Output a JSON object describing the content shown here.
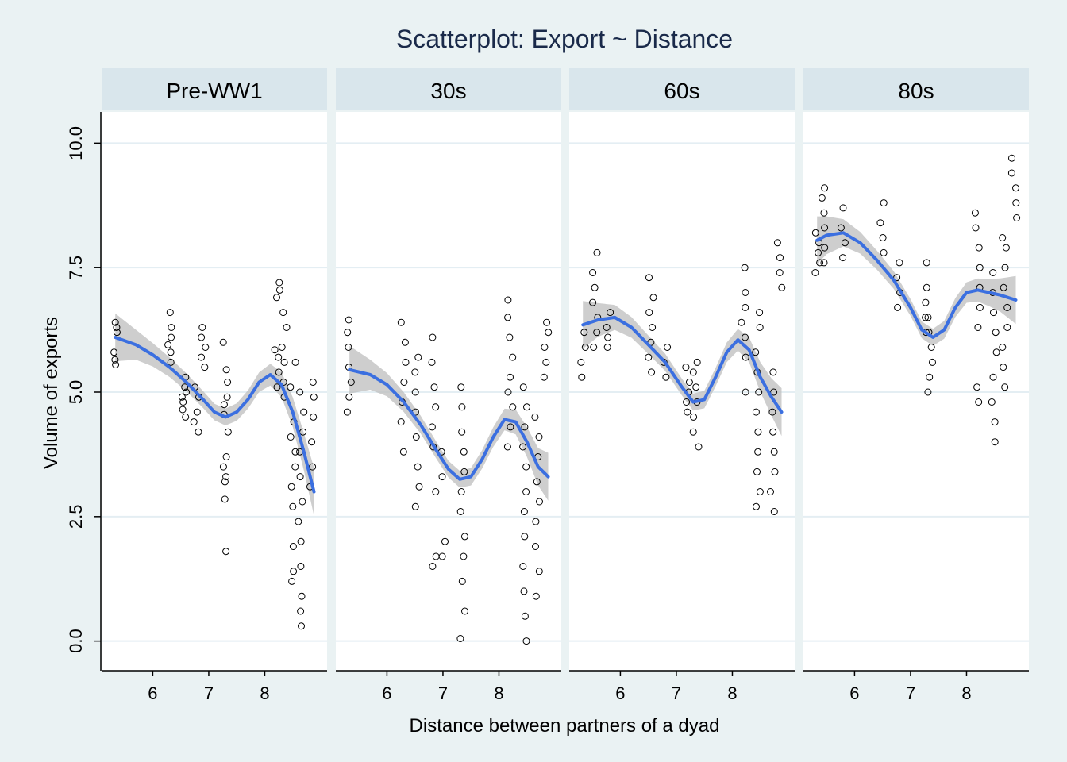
{
  "chart_data": {
    "type": "scatter",
    "title": "Scatterplot: Export ~ Distance",
    "xlabel": "Distance between partners of a dyad",
    "ylabel": "Volume of exports",
    "xlim": [
      5.2,
      9.0
    ],
    "ylim": [
      -0.5,
      10.5
    ],
    "xticks": [
      6,
      7,
      8
    ],
    "xtick_labels": [
      "6",
      "7",
      "8"
    ],
    "yticks": [
      0,
      2.5,
      5,
      7.5,
      10
    ],
    "ytick_labels": [
      "0.0",
      "2.5",
      "5.0",
      "7.5",
      "10.0"
    ],
    "grid": true,
    "legend": "none",
    "colors": {
      "background": "#eaf2f3",
      "panel": "#ffffff",
      "strip": "#d9e6ec",
      "grid": "#e4eef3",
      "smooth_line": "#3b6fe0",
      "confidence_band": "#bdbdbd",
      "points": "#000000"
    },
    "panels": [
      {
        "name": "Pre-WW1",
        "clusters": [
          {
            "x": 5.33,
            "y": [
              5.55,
              5.65,
              5.8,
              6.2,
              6.3,
              6.4
            ]
          },
          {
            "x": 6.32,
            "y": [
              5.6,
              5.8,
              5.95,
              6.1,
              6.3,
              6.6
            ]
          },
          {
            "x": 6.55,
            "y": [
              4.5,
              4.65,
              4.8,
              4.9,
              5.0,
              5.1,
              5.3
            ]
          },
          {
            "x": 6.78,
            "y": [
              4.2,
              4.4,
              4.6,
              4.9,
              5.1
            ]
          },
          {
            "x": 6.9,
            "y": [
              5.5,
              5.7,
              5.9,
              6.1,
              6.3
            ]
          },
          {
            "x": 7.3,
            "y": [
              1.8,
              2.85,
              3.2,
              3.3,
              3.5,
              3.7,
              4.2,
              4.55,
              4.75,
              4.9,
              5.2,
              5.45,
              6.0
            ]
          },
          {
            "x": 8.22,
            "y": [
              5.1,
              5.4,
              5.7,
              5.85,
              6.9,
              7.05,
              7.2
            ]
          },
          {
            "x": 8.35,
            "y": [
              4.9,
              5.2,
              5.6,
              5.9,
              6.3,
              6.6
            ]
          },
          {
            "x": 8.5,
            "y": [
              1.2,
              1.4,
              1.9,
              2.7,
              3.1,
              3.5,
              3.8,
              4.1,
              4.4,
              5.1,
              5.6
            ]
          },
          {
            "x": 8.65,
            "y": [
              0.3,
              0.6,
              0.9,
              1.5,
              2.0,
              2.4,
              2.8,
              3.3,
              3.8,
              4.2,
              4.6,
              5.0
            ]
          },
          {
            "x": 8.85,
            "y": [
              3.1,
              3.5,
              4.0,
              4.5,
              4.9,
              5.2
            ]
          }
        ],
        "smooth": {
          "x": [
            5.33,
            5.7,
            6.0,
            6.3,
            6.6,
            6.9,
            7.1,
            7.3,
            7.5,
            7.7,
            7.9,
            8.1,
            8.3,
            8.5,
            8.7,
            8.88
          ],
          "y": [
            6.1,
            5.95,
            5.75,
            5.5,
            5.2,
            4.85,
            4.6,
            4.5,
            4.6,
            4.85,
            5.2,
            5.35,
            5.15,
            4.6,
            3.8,
            3.0
          ]
        }
      },
      {
        "name": "30s",
        "clusters": [
          {
            "x": 5.33,
            "y": [
              4.6,
              4.9,
              5.2,
              5.5,
              5.9,
              6.2,
              6.45
            ]
          },
          {
            "x": 6.3,
            "y": [
              3.8,
              4.4,
              4.8,
              5.2,
              5.6,
              6.0,
              6.4
            ]
          },
          {
            "x": 6.55,
            "y": [
              2.7,
              3.1,
              3.5,
              4.1,
              4.6,
              5.0,
              5.4,
              5.7
            ]
          },
          {
            "x": 6.85,
            "y": [
              1.5,
              1.7,
              3.0,
              3.9,
              4.3,
              4.7,
              5.1,
              5.6,
              6.1
            ]
          },
          {
            "x": 7.0,
            "y": [
              1.7,
              2.0,
              3.3,
              3.8
            ]
          },
          {
            "x": 7.35,
            "y": [
              0.05,
              0.6,
              1.2,
              1.7,
              2.1,
              2.6,
              3.0,
              3.4,
              3.8,
              4.2,
              4.7,
              5.1
            ]
          },
          {
            "x": 8.2,
            "y": [
              3.9,
              4.3,
              4.7,
              5.0,
              5.3,
              5.7,
              6.1,
              6.5,
              6.85
            ]
          },
          {
            "x": 8.45,
            "y": [
              0.0,
              0.5,
              1.0,
              1.5,
              2.1,
              2.6,
              3.0,
              3.5,
              3.9,
              4.3,
              4.7,
              5.1
            ]
          },
          {
            "x": 8.68,
            "y": [
              0.9,
              1.4,
              1.9,
              2.4,
              2.8,
              3.2,
              3.7,
              4.1,
              4.5
            ]
          },
          {
            "x": 8.85,
            "y": [
              5.3,
              5.6,
              5.9,
              6.2,
              6.4
            ]
          }
        ],
        "smooth": {
          "x": [
            5.33,
            5.7,
            6.0,
            6.3,
            6.6,
            6.9,
            7.1,
            7.3,
            7.5,
            7.7,
            7.9,
            8.1,
            8.3,
            8.5,
            8.7,
            8.88
          ],
          "y": [
            5.45,
            5.35,
            5.15,
            4.8,
            4.35,
            3.8,
            3.45,
            3.25,
            3.3,
            3.65,
            4.1,
            4.45,
            4.4,
            4.0,
            3.5,
            3.3
          ]
        }
      },
      {
        "name": "60s",
        "clusters": [
          {
            "x": 5.33,
            "y": [
              5.3,
              5.6,
              5.9,
              6.2
            ]
          },
          {
            "x": 5.55,
            "y": [
              5.9,
              6.2,
              6.5,
              6.8,
              7.1,
              7.4,
              7.8
            ]
          },
          {
            "x": 5.78,
            "y": [
              5.9,
              6.1,
              6.3,
              6.6
            ]
          },
          {
            "x": 6.55,
            "y": [
              5.4,
              5.7,
              6.0,
              6.3,
              6.6,
              6.9,
              7.3
            ]
          },
          {
            "x": 6.8,
            "y": [
              5.3,
              5.6,
              5.9
            ]
          },
          {
            "x": 7.2,
            "y": [
              4.6,
              4.8,
              5.0,
              5.2,
              5.5
            ]
          },
          {
            "x": 7.35,
            "y": [
              3.9,
              4.2,
              4.5,
              4.8,
              5.1,
              5.4,
              5.6
            ]
          },
          {
            "x": 8.2,
            "y": [
              5.0,
              5.7,
              6.1,
              6.4,
              6.7,
              7.0,
              7.5
            ]
          },
          {
            "x": 8.45,
            "y": [
              2.7,
              3.0,
              3.4,
              3.8,
              4.2,
              4.6,
              5.0,
              5.4,
              5.8,
              6.3,
              6.6
            ]
          },
          {
            "x": 8.72,
            "y": [
              2.6,
              3.0,
              3.4,
              3.8,
              4.2,
              4.6,
              5.0,
              5.4
            ]
          },
          {
            "x": 8.85,
            "y": [
              7.1,
              7.4,
              7.7,
              8.0
            ]
          }
        ],
        "smooth": {
          "x": [
            5.33,
            5.6,
            5.9,
            6.2,
            6.5,
            6.8,
            7.1,
            7.3,
            7.5,
            7.7,
            7.9,
            8.1,
            8.3,
            8.5,
            8.7,
            8.88
          ],
          "y": [
            6.35,
            6.45,
            6.5,
            6.3,
            5.95,
            5.6,
            5.1,
            4.8,
            4.85,
            5.3,
            5.8,
            6.05,
            5.85,
            5.3,
            4.9,
            4.6
          ]
        }
      },
      {
        "name": "80s",
        "clusters": [
          {
            "x": 5.33,
            "y": [
              7.4,
              7.6,
              7.8,
              8.0,
              8.2
            ]
          },
          {
            "x": 5.45,
            "y": [
              7.6,
              7.9,
              8.3,
              8.6,
              8.9,
              9.1
            ]
          },
          {
            "x": 5.8,
            "y": [
              7.7,
              8.0,
              8.3,
              8.7
            ]
          },
          {
            "x": 6.48,
            "y": [
              7.8,
              8.1,
              8.4,
              8.8
            ]
          },
          {
            "x": 6.8,
            "y": [
              6.7,
              7.0,
              7.3,
              7.6
            ]
          },
          {
            "x": 7.25,
            "y": [
              6.2,
              6.5,
              6.8,
              7.1,
              7.6
            ]
          },
          {
            "x": 7.35,
            "y": [
              5.0,
              5.3,
              5.6,
              5.9,
              6.2,
              6.5
            ]
          },
          {
            "x": 8.2,
            "y": [
              4.8,
              5.1,
              6.3,
              6.7,
              7.1,
              7.5,
              7.9,
              8.3,
              8.6
            ]
          },
          {
            "x": 8.5,
            "y": [
              4.0,
              4.4,
              4.8,
              5.3,
              5.8,
              6.2,
              6.6,
              7.0,
              7.4
            ]
          },
          {
            "x": 8.68,
            "y": [
              5.1,
              5.5,
              5.9,
              6.3,
              6.7,
              7.1,
              7.5,
              7.9,
              8.1
            ]
          },
          {
            "x": 8.85,
            "y": [
              8.5,
              8.8,
              9.1,
              9.4,
              9.7
            ]
          }
        ],
        "smooth": {
          "x": [
            5.33,
            5.5,
            5.8,
            6.1,
            6.4,
            6.7,
            7.0,
            7.2,
            7.4,
            7.6,
            7.8,
            8.0,
            8.2,
            8.4,
            8.6,
            8.88
          ],
          "y": [
            8.05,
            8.15,
            8.2,
            8.0,
            7.65,
            7.25,
            6.7,
            6.25,
            6.1,
            6.25,
            6.7,
            7.0,
            7.05,
            7.0,
            6.95,
            6.85
          ]
        }
      }
    ]
  }
}
